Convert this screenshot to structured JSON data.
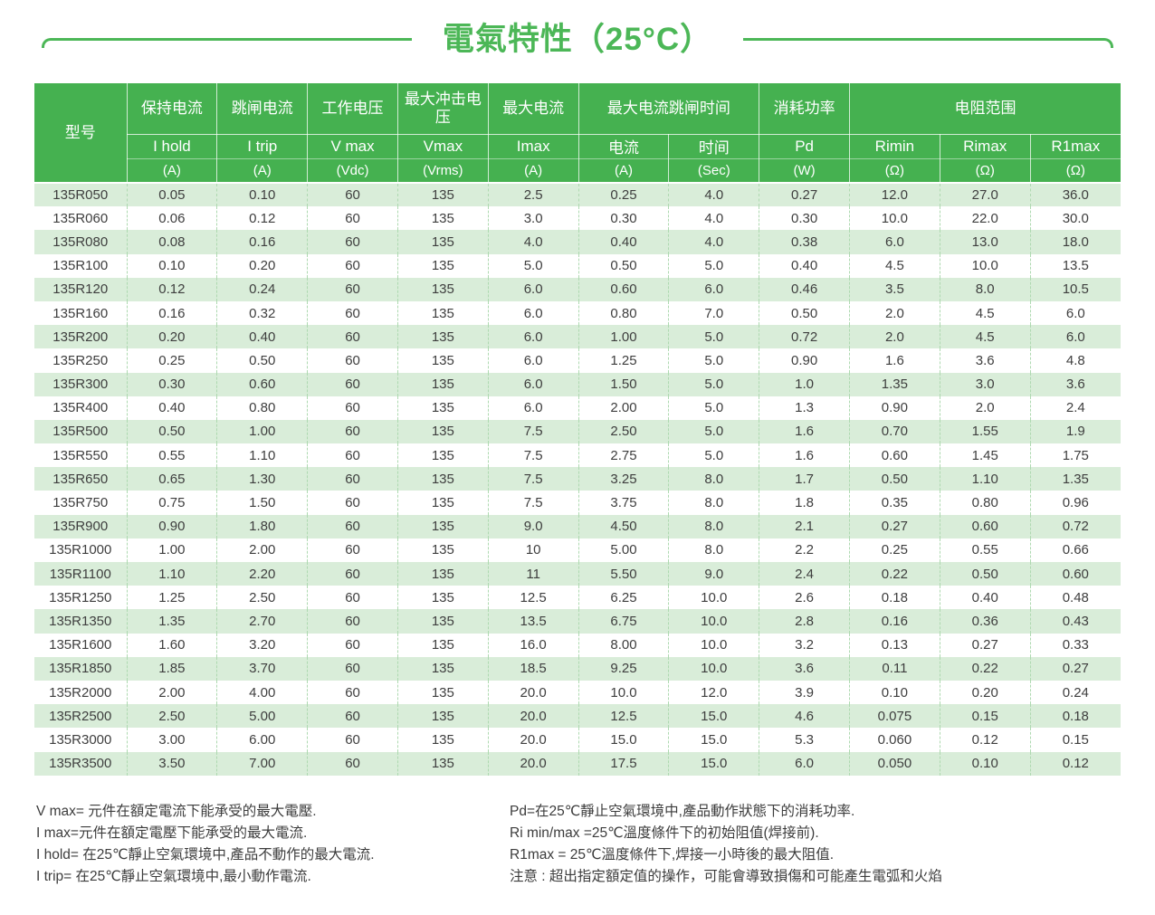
{
  "title": {
    "text": "電氣特性（25°C）"
  },
  "colors": {
    "green": "#45b150",
    "title_green": "#4cb757",
    "stripe": "#d9edd9",
    "dash": "#aed9b0",
    "text": "#3e3e3e"
  },
  "table": {
    "header": {
      "model_label": "型号",
      "top": [
        "保持电流",
        "跳闸电流",
        "工作电压",
        "最大冲击电压",
        "最大电流",
        "最大电流跳闸时间",
        "消耗功率",
        "电阻范围"
      ],
      "sub": [
        "I hold",
        "I trip",
        "V max",
        "Vmax",
        "Imax",
        "电流",
        "时间",
        "Pd",
        "Rimin",
        "Rimax",
        "R1max"
      ],
      "units": [
        "(A)",
        "(A)",
        "(Vdc)",
        "(Vrms)",
        "(A)",
        "(A)",
        "(Sec)",
        "(W)",
        "(Ω)",
        "(Ω)",
        "(Ω)"
      ]
    },
    "rows": [
      [
        "135R050",
        "0.05",
        "0.10",
        "60",
        "135",
        "2.5",
        "0.25",
        "4.0",
        "0.27",
        "12.0",
        "27.0",
        "36.0"
      ],
      [
        "135R060",
        "0.06",
        "0.12",
        "60",
        "135",
        "3.0",
        "0.30",
        "4.0",
        "0.30",
        "10.0",
        "22.0",
        "30.0"
      ],
      [
        "135R080",
        "0.08",
        "0.16",
        "60",
        "135",
        "4.0",
        "0.40",
        "4.0",
        "0.38",
        "6.0",
        "13.0",
        "18.0"
      ],
      [
        "135R100",
        "0.10",
        "0.20",
        "60",
        "135",
        "5.0",
        "0.50",
        "5.0",
        "0.40",
        "4.5",
        "10.0",
        "13.5"
      ],
      [
        "135R120",
        "0.12",
        "0.24",
        "60",
        "135",
        "6.0",
        "0.60",
        "6.0",
        "0.46",
        "3.5",
        "8.0",
        "10.5"
      ],
      [
        "135R160",
        "0.16",
        "0.32",
        "60",
        "135",
        "6.0",
        "0.80",
        "7.0",
        "0.50",
        "2.0",
        "4.5",
        "6.0"
      ],
      [
        "135R200",
        "0.20",
        "0.40",
        "60",
        "135",
        "6.0",
        "1.00",
        "5.0",
        "0.72",
        "2.0",
        "4.5",
        "6.0"
      ],
      [
        "135R250",
        "0.25",
        "0.50",
        "60",
        "135",
        "6.0",
        "1.25",
        "5.0",
        "0.90",
        "1.6",
        "3.6",
        "4.8"
      ],
      [
        "135R300",
        "0.30",
        "0.60",
        "60",
        "135",
        "6.0",
        "1.50",
        "5.0",
        "1.0",
        "1.35",
        "3.0",
        "3.6"
      ],
      [
        "135R400",
        "0.40",
        "0.80",
        "60",
        "135",
        "6.0",
        "2.00",
        "5.0",
        "1.3",
        "0.90",
        "2.0",
        "2.4"
      ],
      [
        "135R500",
        "0.50",
        "1.00",
        "60",
        "135",
        "7.5",
        "2.50",
        "5.0",
        "1.6",
        "0.70",
        "1.55",
        "1.9"
      ],
      [
        "135R550",
        "0.55",
        "1.10",
        "60",
        "135",
        "7.5",
        "2.75",
        "5.0",
        "1.6",
        "0.60",
        "1.45",
        "1.75"
      ],
      [
        "135R650",
        "0.65",
        "1.30",
        "60",
        "135",
        "7.5",
        "3.25",
        "8.0",
        "1.7",
        "0.50",
        "1.10",
        "1.35"
      ],
      [
        "135R750",
        "0.75",
        "1.50",
        "60",
        "135",
        "7.5",
        "3.75",
        "8.0",
        "1.8",
        "0.35",
        "0.80",
        "0.96"
      ],
      [
        "135R900",
        "0.90",
        "1.80",
        "60",
        "135",
        "9.0",
        "4.50",
        "8.0",
        "2.1",
        "0.27",
        "0.60",
        "0.72"
      ],
      [
        "135R1000",
        "1.00",
        "2.00",
        "60",
        "135",
        "10",
        "5.00",
        "8.0",
        "2.2",
        "0.25",
        "0.55",
        "0.66"
      ],
      [
        "135R1100",
        "1.10",
        "2.20",
        "60",
        "135",
        "11",
        "5.50",
        "9.0",
        "2.4",
        "0.22",
        "0.50",
        "0.60"
      ],
      [
        "135R1250",
        "1.25",
        "2.50",
        "60",
        "135",
        "12.5",
        "6.25",
        "10.0",
        "2.6",
        "0.18",
        "0.40",
        "0.48"
      ],
      [
        "135R1350",
        "1.35",
        "2.70",
        "60",
        "135",
        "13.5",
        "6.75",
        "10.0",
        "2.8",
        "0.16",
        "0.36",
        "0.43"
      ],
      [
        "135R1600",
        "1.60",
        "3.20",
        "60",
        "135",
        "16.0",
        "8.00",
        "10.0",
        "3.2",
        "0.13",
        "0.27",
        "0.33"
      ],
      [
        "135R1850",
        "1.85",
        "3.70",
        "60",
        "135",
        "18.5",
        "9.25",
        "10.0",
        "3.6",
        "0.11",
        "0.22",
        "0.27"
      ],
      [
        "135R2000",
        "2.00",
        "4.00",
        "60",
        "135",
        "20.0",
        "10.0",
        "12.0",
        "3.9",
        "0.10",
        "0.20",
        "0.24"
      ],
      [
        "135R2500",
        "2.50",
        "5.00",
        "60",
        "135",
        "20.0",
        "12.5",
        "15.0",
        "4.6",
        "0.075",
        "0.15",
        "0.18"
      ],
      [
        "135R3000",
        "3.00",
        "6.00",
        "60",
        "135",
        "20.0",
        "15.0",
        "15.0",
        "5.3",
        "0.060",
        "0.12",
        "0.15"
      ],
      [
        "135R3500",
        "3.50",
        "7.00",
        "60",
        "135",
        "20.0",
        "17.5",
        "15.0",
        "6.0",
        "0.050",
        "0.10",
        "0.12"
      ]
    ]
  },
  "footnotes": {
    "left": [
      "V max= 元件在額定電流下能承受的最大電壓.",
      "I max=元件在額定電壓下能承受的最大電流.",
      "I hold= 在25℃靜止空氣環境中,產品不動作的最大電流.",
      "I trip= 在25℃靜止空氣環境中,最小動作電流."
    ],
    "right": [
      "Pd=在25℃靜止空氣環境中,產品動作狀態下的消耗功率.",
      "Ri min/max  =25℃溫度條件下的初始阻值(焊接前).",
      "R1max  =  25℃溫度條件下,焊接一小時後的最大阻值.",
      "注意 : 超出指定額定值的操作，可能會導致損傷和可能產生電弧和火焰"
    ]
  }
}
